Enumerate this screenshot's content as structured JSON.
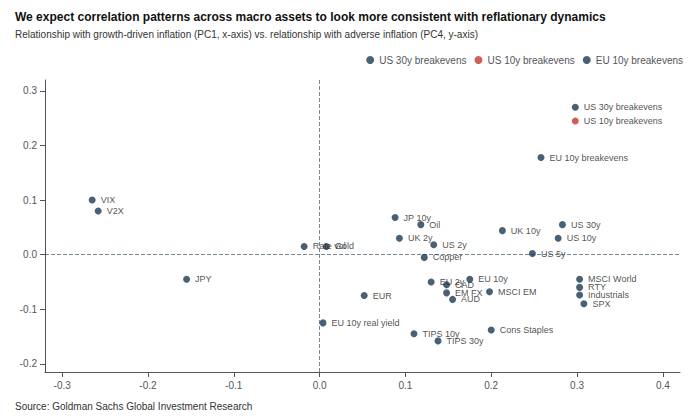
{
  "chart_data": {
    "type": "scatter",
    "title": "We expect correlation patterns across macro assets to look more consistent with reflationary dynamics",
    "subtitle": "Relationship with growth-driven inflation (PC1, x-axis) vs. relationship with adverse inflation (PC4, y-axis)",
    "source": "Source: Goldman Sachs Global Investment Research",
    "xlim": [
      -0.32,
      0.42
    ],
    "ylim": [
      -0.215,
      0.32
    ],
    "xticks": [
      -0.3,
      -0.2,
      -0.1,
      {
        "value": 0.0,
        "label": "0.0"
      },
      0.1,
      0.2,
      0.3,
      0.4
    ],
    "yticks": [
      -0.2,
      -0.1,
      {
        "value": 0.0,
        "label": "0.0"
      },
      0.1,
      0.2,
      0.3
    ],
    "grid": false,
    "legend": "upper right",
    "series": [
      {
        "color": "#1b3a52",
        "labels": [
          "VIX",
          "V2X",
          "JPY",
          "Rate vol",
          "Gold",
          "EU 10y real yield",
          "EUR",
          "JP 10y",
          "UK 2y",
          "TIPS 10y",
          "TIPS 30y",
          "Oil",
          "US 2y",
          "Copper",
          "EU 2y",
          "CAD",
          "EM FX",
          "AUD",
          "Cons Staples",
          "EU 10y",
          "MSCI EM",
          "UK 10y",
          "US 5y",
          "US 10y",
          "US 30y",
          "MSCI World",
          "RTY",
          "Industrials",
          "SPX"
        ],
        "x": [
          -0.265,
          -0.258,
          -0.155,
          -0.018,
          0.008,
          0.004,
          0.052,
          0.088,
          0.093,
          0.11,
          0.138,
          0.118,
          0.133,
          0.122,
          0.13,
          0.148,
          0.148,
          0.155,
          0.2,
          0.175,
          0.198,
          0.213,
          0.248,
          0.278,
          0.283,
          0.303,
          0.303,
          0.303,
          0.308
        ],
        "values": [
          0.1,
          0.08,
          -0.045,
          0.015,
          0.015,
          -0.125,
          -0.075,
          0.068,
          0.03,
          -0.145,
          -0.158,
          0.055,
          0.018,
          -0.005,
          -0.05,
          -0.055,
          -0.07,
          -0.082,
          -0.138,
          -0.045,
          -0.068,
          0.044,
          0.002,
          0.03,
          0.055,
          -0.045,
          -0.06,
          -0.074,
          -0.09
        ]
      },
      {
        "name": "US 30y breakevens",
        "color": "#1b3a52",
        "labels": [
          "US 30y breakevens"
        ],
        "x": [
          0.298
        ],
        "values": [
          0.27
        ]
      },
      {
        "name": "US 10y breakevens",
        "color": "#c0392b",
        "labels": [
          "US 10y breakevens"
        ],
        "x": [
          0.298
        ],
        "values": [
          0.245
        ]
      },
      {
        "name": "EU 10y breakevens",
        "color": "#1b3a52",
        "labels": [
          "EU 10y breakevens"
        ],
        "x": [
          0.258
        ],
        "values": [
          0.178
        ]
      }
    ]
  }
}
